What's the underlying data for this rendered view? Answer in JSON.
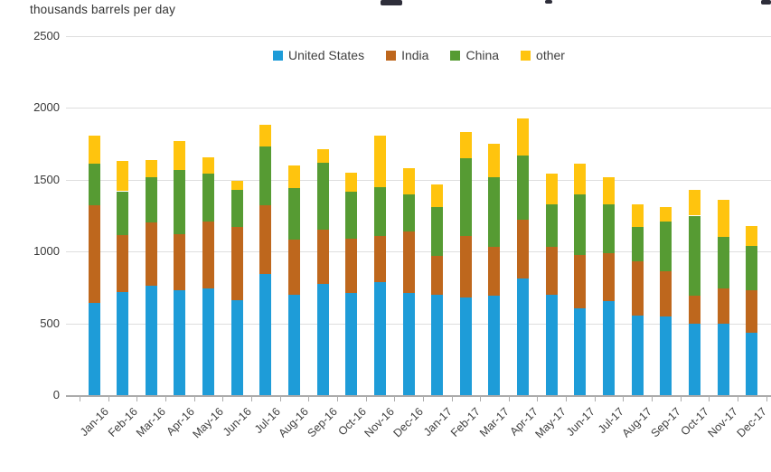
{
  "header": {
    "units_label": "thousands barrels per day"
  },
  "chart_data": {
    "type": "bar",
    "stacked": true,
    "unit_label": "thousands barrels per day",
    "categories": [
      "Jan-16",
      "Feb-16",
      "Mar-16",
      "Apr-16",
      "May-16",
      "Jun-16",
      "Jul-16",
      "Aug-16",
      "Sep-16",
      "Oct-16",
      "Nov-16",
      "Dec-16",
      "Jan-17",
      "Feb-17",
      "Mar-17",
      "Apr-17",
      "May-17",
      "Jun-17",
      "Jul-17",
      "Aug-17",
      "Sep-17",
      "Oct-17",
      "Nov-17",
      "Dec-17"
    ],
    "series": [
      {
        "name": "United States",
        "color": "#1e9cd8",
        "values": [
          640,
          715,
          765,
          730,
          745,
          660,
          845,
          700,
          775,
          710,
          790,
          710,
          700,
          680,
          690,
          810,
          700,
          605,
          655,
          555,
          545,
          500,
          495,
          435
        ]
      },
      {
        "name": "India",
        "color": "#be671d",
        "values": [
          680,
          400,
          435,
          390,
          465,
          510,
          475,
          380,
          375,
          380,
          320,
          430,
          270,
          430,
          340,
          410,
          330,
          370,
          335,
          375,
          315,
          190,
          245,
          295
        ]
      },
      {
        "name": "China",
        "color": "#569b33",
        "values": [
          290,
          305,
          320,
          450,
          330,
          260,
          410,
          360,
          470,
          330,
          340,
          260,
          340,
          540,
          490,
          450,
          300,
          425,
          340,
          240,
          350,
          560,
          360,
          310
        ]
      },
      {
        "name": "other",
        "color": "#ffc40e",
        "values": [
          200,
          210,
          120,
          200,
          115,
          60,
          150,
          160,
          90,
          130,
          360,
          180,
          160,
          180,
          230,
          260,
          210,
          210,
          190,
          160,
          100,
          180,
          260,
          140
        ]
      }
    ],
    "ylim": [
      0,
      2500
    ],
    "yticks": [
      0,
      500,
      1000,
      1500,
      2000,
      2500
    ],
    "grid": true,
    "legend_position": "top-center"
  }
}
